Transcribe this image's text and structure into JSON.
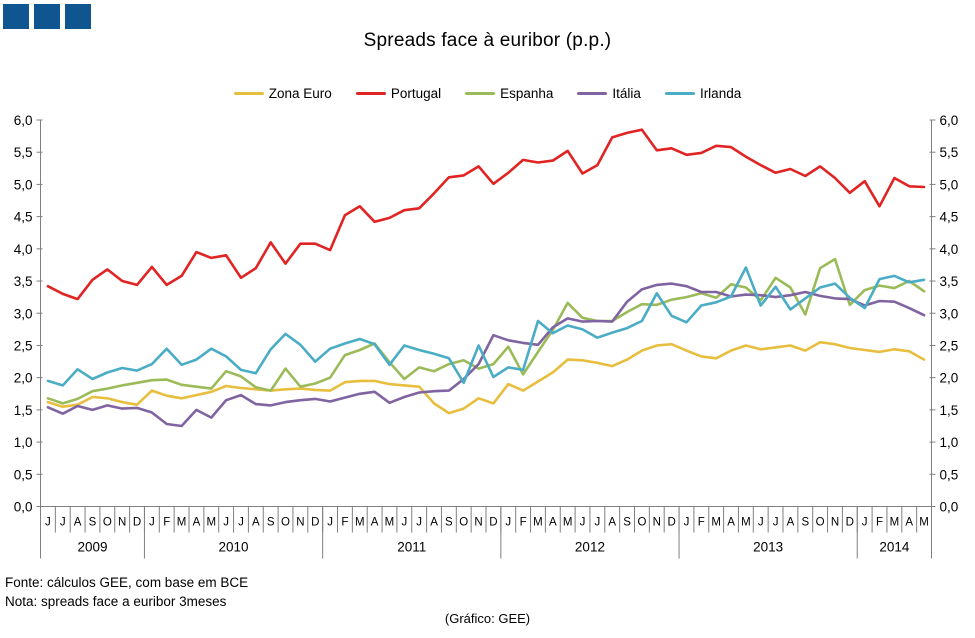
{
  "header": {
    "title": "Spreads face à euribor (p.p.)"
  },
  "logo": {
    "square_color": "#0F5590",
    "square_count": 3
  },
  "footer": {
    "fonte": "Fonte: cálculos GEE, com base em BCE",
    "nota": "Nota: spreads face a euribor 3meses",
    "grafico": "(Gráfico: GEE)"
  },
  "chart_data": {
    "type": "line",
    "title": "Spreads face à euribor (p.p.)",
    "xlabel": "",
    "ylabel": "",
    "ylim": [
      0.0,
      6.0
    ],
    "ytick_step": 0.5,
    "decimal_separator": ",",
    "grid": false,
    "legend_position": "top",
    "axis_color": "#7F7F7F",
    "x_groups": [
      {
        "year": "2009",
        "months": [
          "J",
          "J",
          "A",
          "S",
          "O",
          "N",
          "D"
        ]
      },
      {
        "year": "2010",
        "months": [
          "J",
          "F",
          "M",
          "A",
          "M",
          "J",
          "J",
          "A",
          "S",
          "O",
          "N",
          "D"
        ]
      },
      {
        "year": "2011",
        "months": [
          "J",
          "F",
          "M",
          "A",
          "M",
          "J",
          "J",
          "A",
          "S",
          "O",
          "N",
          "D"
        ]
      },
      {
        "year": "2012",
        "months": [
          "J",
          "F",
          "M",
          "A",
          "M",
          "J",
          "J",
          "A",
          "S",
          "O",
          "N",
          "D"
        ]
      },
      {
        "year": "2013",
        "months": [
          "J",
          "F",
          "M",
          "A",
          "M",
          "J",
          "J",
          "A",
          "S",
          "O",
          "N",
          "D"
        ]
      },
      {
        "year": "2014",
        "months": [
          "J",
          "F",
          "M",
          "A",
          "M"
        ]
      }
    ],
    "series": [
      {
        "name": "Zona Euro",
        "color": "#E8BE3F",
        "values": [
          1.62,
          1.55,
          1.58,
          1.7,
          1.68,
          1.62,
          1.58,
          1.8,
          1.72,
          1.68,
          1.73,
          1.78,
          1.87,
          1.84,
          1.82,
          1.8,
          1.82,
          1.83,
          1.81,
          1.8,
          1.93,
          1.95,
          1.95,
          1.9,
          1.88,
          1.86,
          1.6,
          1.45,
          1.52,
          1.68,
          1.6,
          1.9,
          1.8,
          1.94,
          2.08,
          2.28,
          2.27,
          2.23,
          2.18,
          2.28,
          2.42,
          2.5,
          2.52,
          2.42,
          2.33,
          2.3,
          2.42,
          2.5,
          2.44,
          2.47,
          2.5,
          2.42,
          2.55,
          2.52,
          2.46,
          2.43,
          2.4,
          2.44,
          2.41,
          2.28
        ]
      },
      {
        "name": "Portugal",
        "color": "#E02423",
        "values": [
          3.42,
          3.3,
          3.22,
          3.52,
          3.68,
          3.5,
          3.44,
          3.72,
          3.44,
          3.58,
          3.95,
          3.86,
          3.9,
          3.55,
          3.7,
          4.1,
          3.77,
          4.08,
          4.08,
          3.98,
          4.52,
          4.66,
          4.42,
          4.48,
          4.6,
          4.63,
          4.86,
          5.11,
          5.14,
          5.28,
          5.01,
          5.18,
          5.38,
          5.34,
          5.37,
          5.52,
          5.17,
          5.3,
          5.73,
          5.8,
          5.85,
          5.53,
          5.56,
          5.46,
          5.49,
          5.6,
          5.58,
          5.43,
          5.3,
          5.18,
          5.24,
          5.13,
          5.28,
          5.1,
          4.87,
          5.05,
          4.66,
          5.1,
          4.97,
          4.96
        ]
      },
      {
        "name": "Espanha",
        "color": "#9BBB59",
        "values": [
          1.68,
          1.6,
          1.67,
          1.79,
          1.83,
          1.88,
          1.92,
          1.96,
          1.97,
          1.89,
          1.86,
          1.83,
          2.1,
          2.02,
          1.85,
          1.8,
          2.14,
          1.86,
          1.91,
          2.0,
          2.35,
          2.43,
          2.53,
          2.24,
          1.98,
          2.16,
          2.1,
          2.21,
          2.27,
          2.14,
          2.21,
          2.48,
          2.05,
          2.4,
          2.74,
          3.16,
          2.93,
          2.88,
          2.88,
          3.02,
          3.14,
          3.13,
          3.21,
          3.25,
          3.31,
          3.24,
          3.45,
          3.4,
          3.2,
          3.55,
          3.4,
          2.98,
          3.7,
          3.84,
          3.13,
          3.36,
          3.43,
          3.39,
          3.5,
          3.34
        ]
      },
      {
        "name": "Itália",
        "color": "#8064A2",
        "values": [
          1.54,
          1.44,
          1.56,
          1.5,
          1.57,
          1.52,
          1.53,
          1.46,
          1.28,
          1.25,
          1.5,
          1.38,
          1.65,
          1.73,
          1.59,
          1.57,
          1.62,
          1.65,
          1.67,
          1.63,
          1.69,
          1.75,
          1.78,
          1.61,
          1.7,
          1.77,
          1.79,
          1.8,
          1.98,
          2.21,
          2.66,
          2.58,
          2.54,
          2.51,
          2.78,
          2.92,
          2.87,
          2.88,
          2.87,
          3.18,
          3.37,
          3.44,
          3.46,
          3.42,
          3.33,
          3.33,
          3.26,
          3.29,
          3.28,
          3.25,
          3.28,
          3.33,
          3.27,
          3.23,
          3.22,
          3.12,
          3.19,
          3.18,
          3.08,
          2.97
        ]
      },
      {
        "name": "Irlanda",
        "color": "#4BACC6",
        "values": [
          1.95,
          1.88,
          2.13,
          1.98,
          2.08,
          2.15,
          2.11,
          2.21,
          2.45,
          2.2,
          2.28,
          2.45,
          2.33,
          2.12,
          2.07,
          2.44,
          2.68,
          2.51,
          2.25,
          2.45,
          2.53,
          2.6,
          2.52,
          2.2,
          2.5,
          2.43,
          2.37,
          2.3,
          1.92,
          2.5,
          2.01,
          2.16,
          2.12,
          2.88,
          2.69,
          2.81,
          2.75,
          2.62,
          2.7,
          2.77,
          2.88,
          3.31,
          2.96,
          2.86,
          3.12,
          3.17,
          3.26,
          3.71,
          3.12,
          3.41,
          3.06,
          3.23,
          3.4,
          3.46,
          3.24,
          3.08,
          3.53,
          3.58,
          3.48,
          3.52
        ]
      }
    ]
  }
}
